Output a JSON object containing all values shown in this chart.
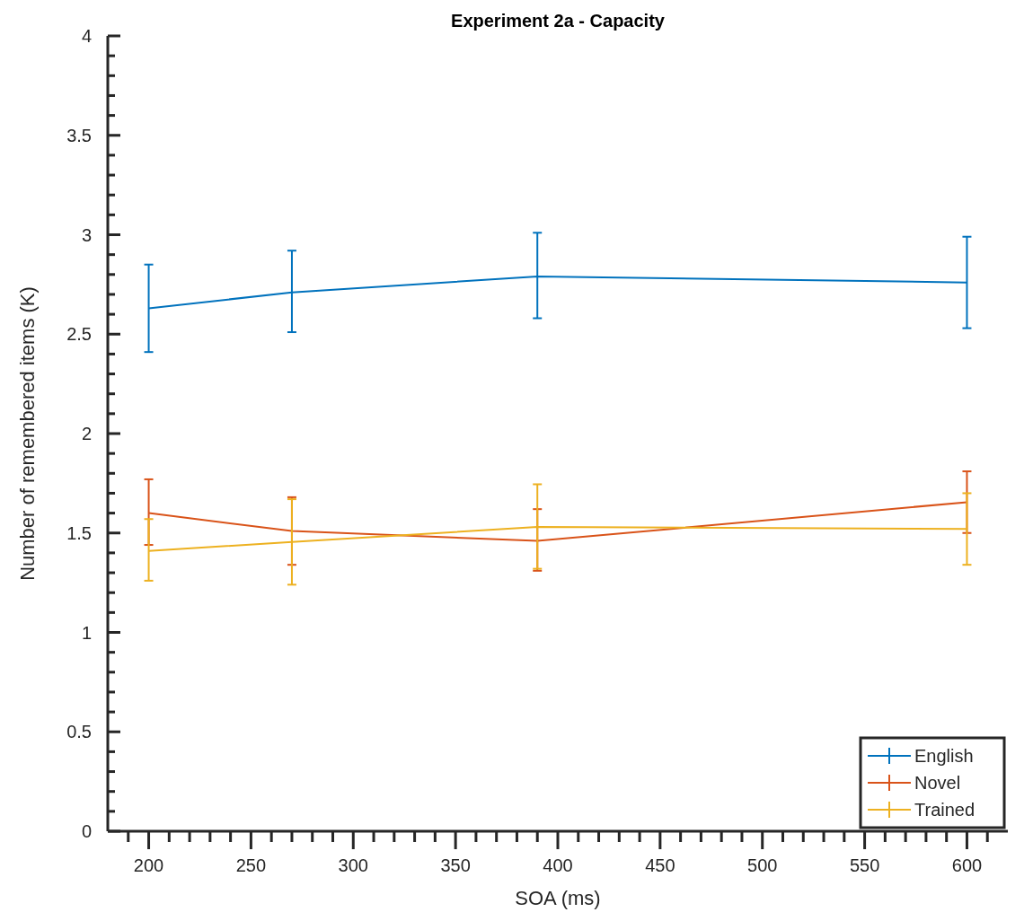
{
  "chart_data": {
    "type": "line",
    "title": "Experiment 2a - Capacity",
    "xlabel": "SOA (ms)",
    "ylabel": "Number of remembered items (K)",
    "x": [
      200,
      270,
      390,
      600
    ],
    "series": [
      {
        "name": "English",
        "color": "#0072bd",
        "values": [
          2.63,
          2.71,
          2.79,
          2.76
        ],
        "errors": [
          [
            2.41,
            2.85
          ],
          [
            2.51,
            2.92
          ],
          [
            2.58,
            3.01
          ],
          [
            2.53,
            2.99
          ]
        ]
      },
      {
        "name": "Novel",
        "color": "#d95319",
        "values": [
          1.6,
          1.51,
          1.46,
          1.655
        ],
        "errors": [
          [
            1.44,
            1.77
          ],
          [
            1.34,
            1.68
          ],
          [
            1.31,
            1.62
          ],
          [
            1.5,
            1.81
          ]
        ]
      },
      {
        "name": "Trained",
        "color": "#edb120",
        "values": [
          1.41,
          1.455,
          1.53,
          1.52
        ],
        "errors": [
          [
            1.26,
            1.57
          ],
          [
            1.24,
            1.67
          ],
          [
            1.32,
            1.745
          ],
          [
            1.34,
            1.7
          ]
        ]
      }
    ],
    "xlim": [
      180,
      620
    ],
    "xticks": [
      {
        "value": 190,
        "label": null
      },
      200,
      {
        "value": 210,
        "label": null
      },
      {
        "value": 220,
        "label": null
      },
      {
        "value": 230,
        "label": null
      },
      {
        "value": 240,
        "label": null
      },
      250,
      {
        "value": 260,
        "label": null
      },
      {
        "value": 270,
        "label": null
      },
      {
        "value": 280,
        "label": null
      },
      {
        "value": 290,
        "label": null
      },
      300,
      {
        "value": 310,
        "label": null
      },
      {
        "value": 320,
        "label": null
      },
      {
        "value": 330,
        "label": null
      },
      {
        "value": 340,
        "label": null
      },
      350,
      {
        "value": 360,
        "label": null
      },
      {
        "value": 370,
        "label": null
      },
      {
        "value": 380,
        "label": null
      },
      {
        "value": 390,
        "label": null
      },
      400,
      {
        "value": 410,
        "label": null
      },
      {
        "value": 420,
        "label": null
      },
      {
        "value": 430,
        "label": null
      },
      {
        "value": 440,
        "label": null
      },
      450,
      {
        "value": 460,
        "label": null
      },
      {
        "value": 470,
        "label": null
      },
      {
        "value": 480,
        "label": null
      },
      {
        "value": 490,
        "label": null
      },
      500,
      {
        "value": 510,
        "label": null
      },
      {
        "value": 520,
        "label": null
      },
      {
        "value": 530,
        "label": null
      },
      {
        "value": 540,
        "label": null
      },
      550,
      {
        "value": 560,
        "label": null
      },
      {
        "value": 570,
        "label": null
      },
      {
        "value": 580,
        "label": null
      },
      {
        "value": 590,
        "label": null
      },
      600,
      {
        "value": 610,
        "label": null
      }
    ],
    "ylim": [
      0,
      4
    ],
    "yticks": [
      0,
      {
        "value": 0.1,
        "label": null
      },
      {
        "value": 0.2,
        "label": null
      },
      {
        "value": 0.3,
        "label": null
      },
      {
        "value": 0.4,
        "label": null
      },
      0.5,
      {
        "value": 0.6,
        "label": null
      },
      {
        "value": 0.7,
        "label": null
      },
      {
        "value": 0.8,
        "label": null
      },
      {
        "value": 0.9,
        "label": null
      },
      1,
      {
        "value": 1.1,
        "label": null
      },
      {
        "value": 1.2,
        "label": null
      },
      {
        "value": 1.3,
        "label": null
      },
      {
        "value": 1.4,
        "label": null
      },
      1.5,
      {
        "value": 1.6,
        "label": null
      },
      {
        "value": 1.7,
        "label": null
      },
      {
        "value": 1.8,
        "label": null
      },
      {
        "value": 1.9,
        "label": null
      },
      2,
      {
        "value": 2.1,
        "label": null
      },
      {
        "value": 2.2,
        "label": null
      },
      {
        "value": 2.3,
        "label": null
      },
      {
        "value": 2.4,
        "label": null
      },
      2.5,
      {
        "value": 2.6,
        "label": null
      },
      {
        "value": 2.7,
        "label": null
      },
      {
        "value": 2.8,
        "label": null
      },
      {
        "value": 2.9,
        "label": null
      },
      3,
      {
        "value": 3.1,
        "label": null
      },
      {
        "value": 3.2,
        "label": null
      },
      {
        "value": 3.3,
        "label": null
      },
      {
        "value": 3.4,
        "label": null
      },
      3.5,
      {
        "value": 3.6,
        "label": null
      },
      {
        "value": 3.7,
        "label": null
      },
      {
        "value": 3.8,
        "label": null
      },
      {
        "value": 3.9,
        "label": null
      },
      4
    ],
    "legend": "bottom right",
    "grid": false,
    "marker": "none",
    "line_style": "solid"
  }
}
